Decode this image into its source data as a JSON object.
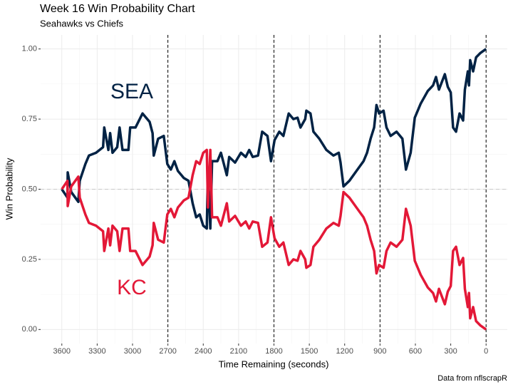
{
  "chart_data": {
    "type": "line",
    "title": "Week 16 Win Probability Chart",
    "subtitle": "Seahawks vs Chiefs",
    "x_label": "Time Remaining (seconds)",
    "y_label": "Win Probability",
    "caption": "Data from nflscrapR",
    "x": [
      3600,
      3552,
      3550,
      3520,
      3460,
      3448,
      3400,
      3370,
      3310,
      3250,
      3240,
      3205,
      3190,
      3170,
      3130,
      3110,
      3085,
      3035,
      3020,
      2975,
      2915,
      2855,
      2830,
      2820,
      2783,
      2735,
      2705,
      2675,
      2645,
      2615,
      2565,
      2525,
      2490,
      2460,
      2430,
      2400,
      2370,
      2360,
      2340,
      2325,
      2280,
      2250,
      2200,
      2180,
      2130,
      2080,
      2040,
      2010,
      1980,
      1935,
      1900,
      1855,
      1825,
      1795,
      1755,
      1720,
      1675,
      1635,
      1600,
      1575,
      1535,
      1525,
      1490,
      1465,
      1415,
      1355,
      1295,
      1250,
      1235,
      1210,
      1160,
      1100,
      1040,
      1010,
      980,
      950,
      930,
      908,
      870,
      845,
      810,
      760,
      710,
      680,
      640,
      605,
      555,
      495,
      450,
      425,
      400,
      350,
      325,
      300,
      280,
      255,
      225,
      195,
      180,
      155,
      145,
      135,
      110,
      85,
      50,
      0
    ],
    "series": [
      {
        "name": "SEA",
        "color": "#002244",
        "values": [
          0.5,
          0.47,
          0.56,
          0.49,
          0.455,
          0.53,
          0.59,
          0.62,
          0.63,
          0.65,
          0.72,
          0.64,
          0.7,
          0.63,
          0.65,
          0.72,
          0.64,
          0.64,
          0.72,
          0.72,
          0.77,
          0.74,
          0.7,
          0.62,
          0.68,
          0.69,
          0.59,
          0.57,
          0.6,
          0.565,
          0.54,
          0.53,
          0.45,
          0.4,
          0.41,
          0.37,
          0.36,
          0.565,
          0.36,
          0.6,
          0.6,
          0.63,
          0.55,
          0.615,
          0.595,
          0.63,
          0.615,
          0.64,
          0.615,
          0.62,
          0.705,
          0.69,
          0.6,
          0.675,
          0.705,
          0.69,
          0.77,
          0.75,
          0.755,
          0.72,
          0.75,
          0.78,
          0.77,
          0.705,
          0.68,
          0.64,
          0.62,
          0.63,
          0.595,
          0.51,
          0.53,
          0.565,
          0.6,
          0.63,
          0.68,
          0.72,
          0.8,
          0.77,
          0.78,
          0.72,
          0.69,
          0.705,
          0.68,
          0.57,
          0.63,
          0.755,
          0.805,
          0.85,
          0.87,
          0.9,
          0.855,
          0.91,
          0.865,
          0.845,
          0.72,
          0.705,
          0.77,
          0.745,
          0.855,
          0.92,
          0.87,
          0.96,
          0.92,
          0.97,
          0.985,
          1.0
        ]
      },
      {
        "name": "KC",
        "color": "#E31837",
        "values": [
          0.5,
          0.53,
          0.44,
          0.51,
          0.545,
          0.47,
          0.41,
          0.38,
          0.37,
          0.35,
          0.28,
          0.36,
          0.3,
          0.37,
          0.35,
          0.28,
          0.36,
          0.36,
          0.28,
          0.28,
          0.23,
          0.26,
          0.3,
          0.38,
          0.32,
          0.31,
          0.41,
          0.43,
          0.4,
          0.435,
          0.46,
          0.47,
          0.55,
          0.6,
          0.59,
          0.63,
          0.64,
          0.435,
          0.64,
          0.4,
          0.4,
          0.37,
          0.45,
          0.385,
          0.405,
          0.37,
          0.385,
          0.36,
          0.385,
          0.38,
          0.295,
          0.31,
          0.4,
          0.325,
          0.295,
          0.31,
          0.23,
          0.25,
          0.245,
          0.28,
          0.25,
          0.22,
          0.23,
          0.295,
          0.32,
          0.36,
          0.38,
          0.37,
          0.405,
          0.49,
          0.47,
          0.435,
          0.4,
          0.37,
          0.32,
          0.28,
          0.2,
          0.23,
          0.22,
          0.28,
          0.31,
          0.295,
          0.32,
          0.43,
          0.37,
          0.245,
          0.195,
          0.15,
          0.13,
          0.1,
          0.145,
          0.09,
          0.135,
          0.155,
          0.28,
          0.295,
          0.23,
          0.255,
          0.145,
          0.08,
          0.13,
          0.04,
          0.08,
          0.03,
          0.015,
          0.0
        ]
      }
    ],
    "xlim": [
      3780,
      -180
    ],
    "xticks": [
      3600,
      3300,
      3000,
      2700,
      2400,
      2100,
      1800,
      1500,
      1200,
      900,
      600,
      300,
      0
    ],
    "ylim": [
      -0.05,
      1.05
    ],
    "yticks": [
      {
        "value": 0,
        "label": "0.00"
      },
      {
        "value": 0.25,
        "label": "0.25"
      },
      {
        "value": 0.5,
        "label": "0.50"
      },
      {
        "value": 0.75,
        "label": "0.75"
      },
      {
        "value": 1,
        "label": "1.00"
      }
    ],
    "quarter_lines": [
      2700,
      1800,
      900,
      0
    ],
    "hline": 0.5,
    "grid": true
  }
}
